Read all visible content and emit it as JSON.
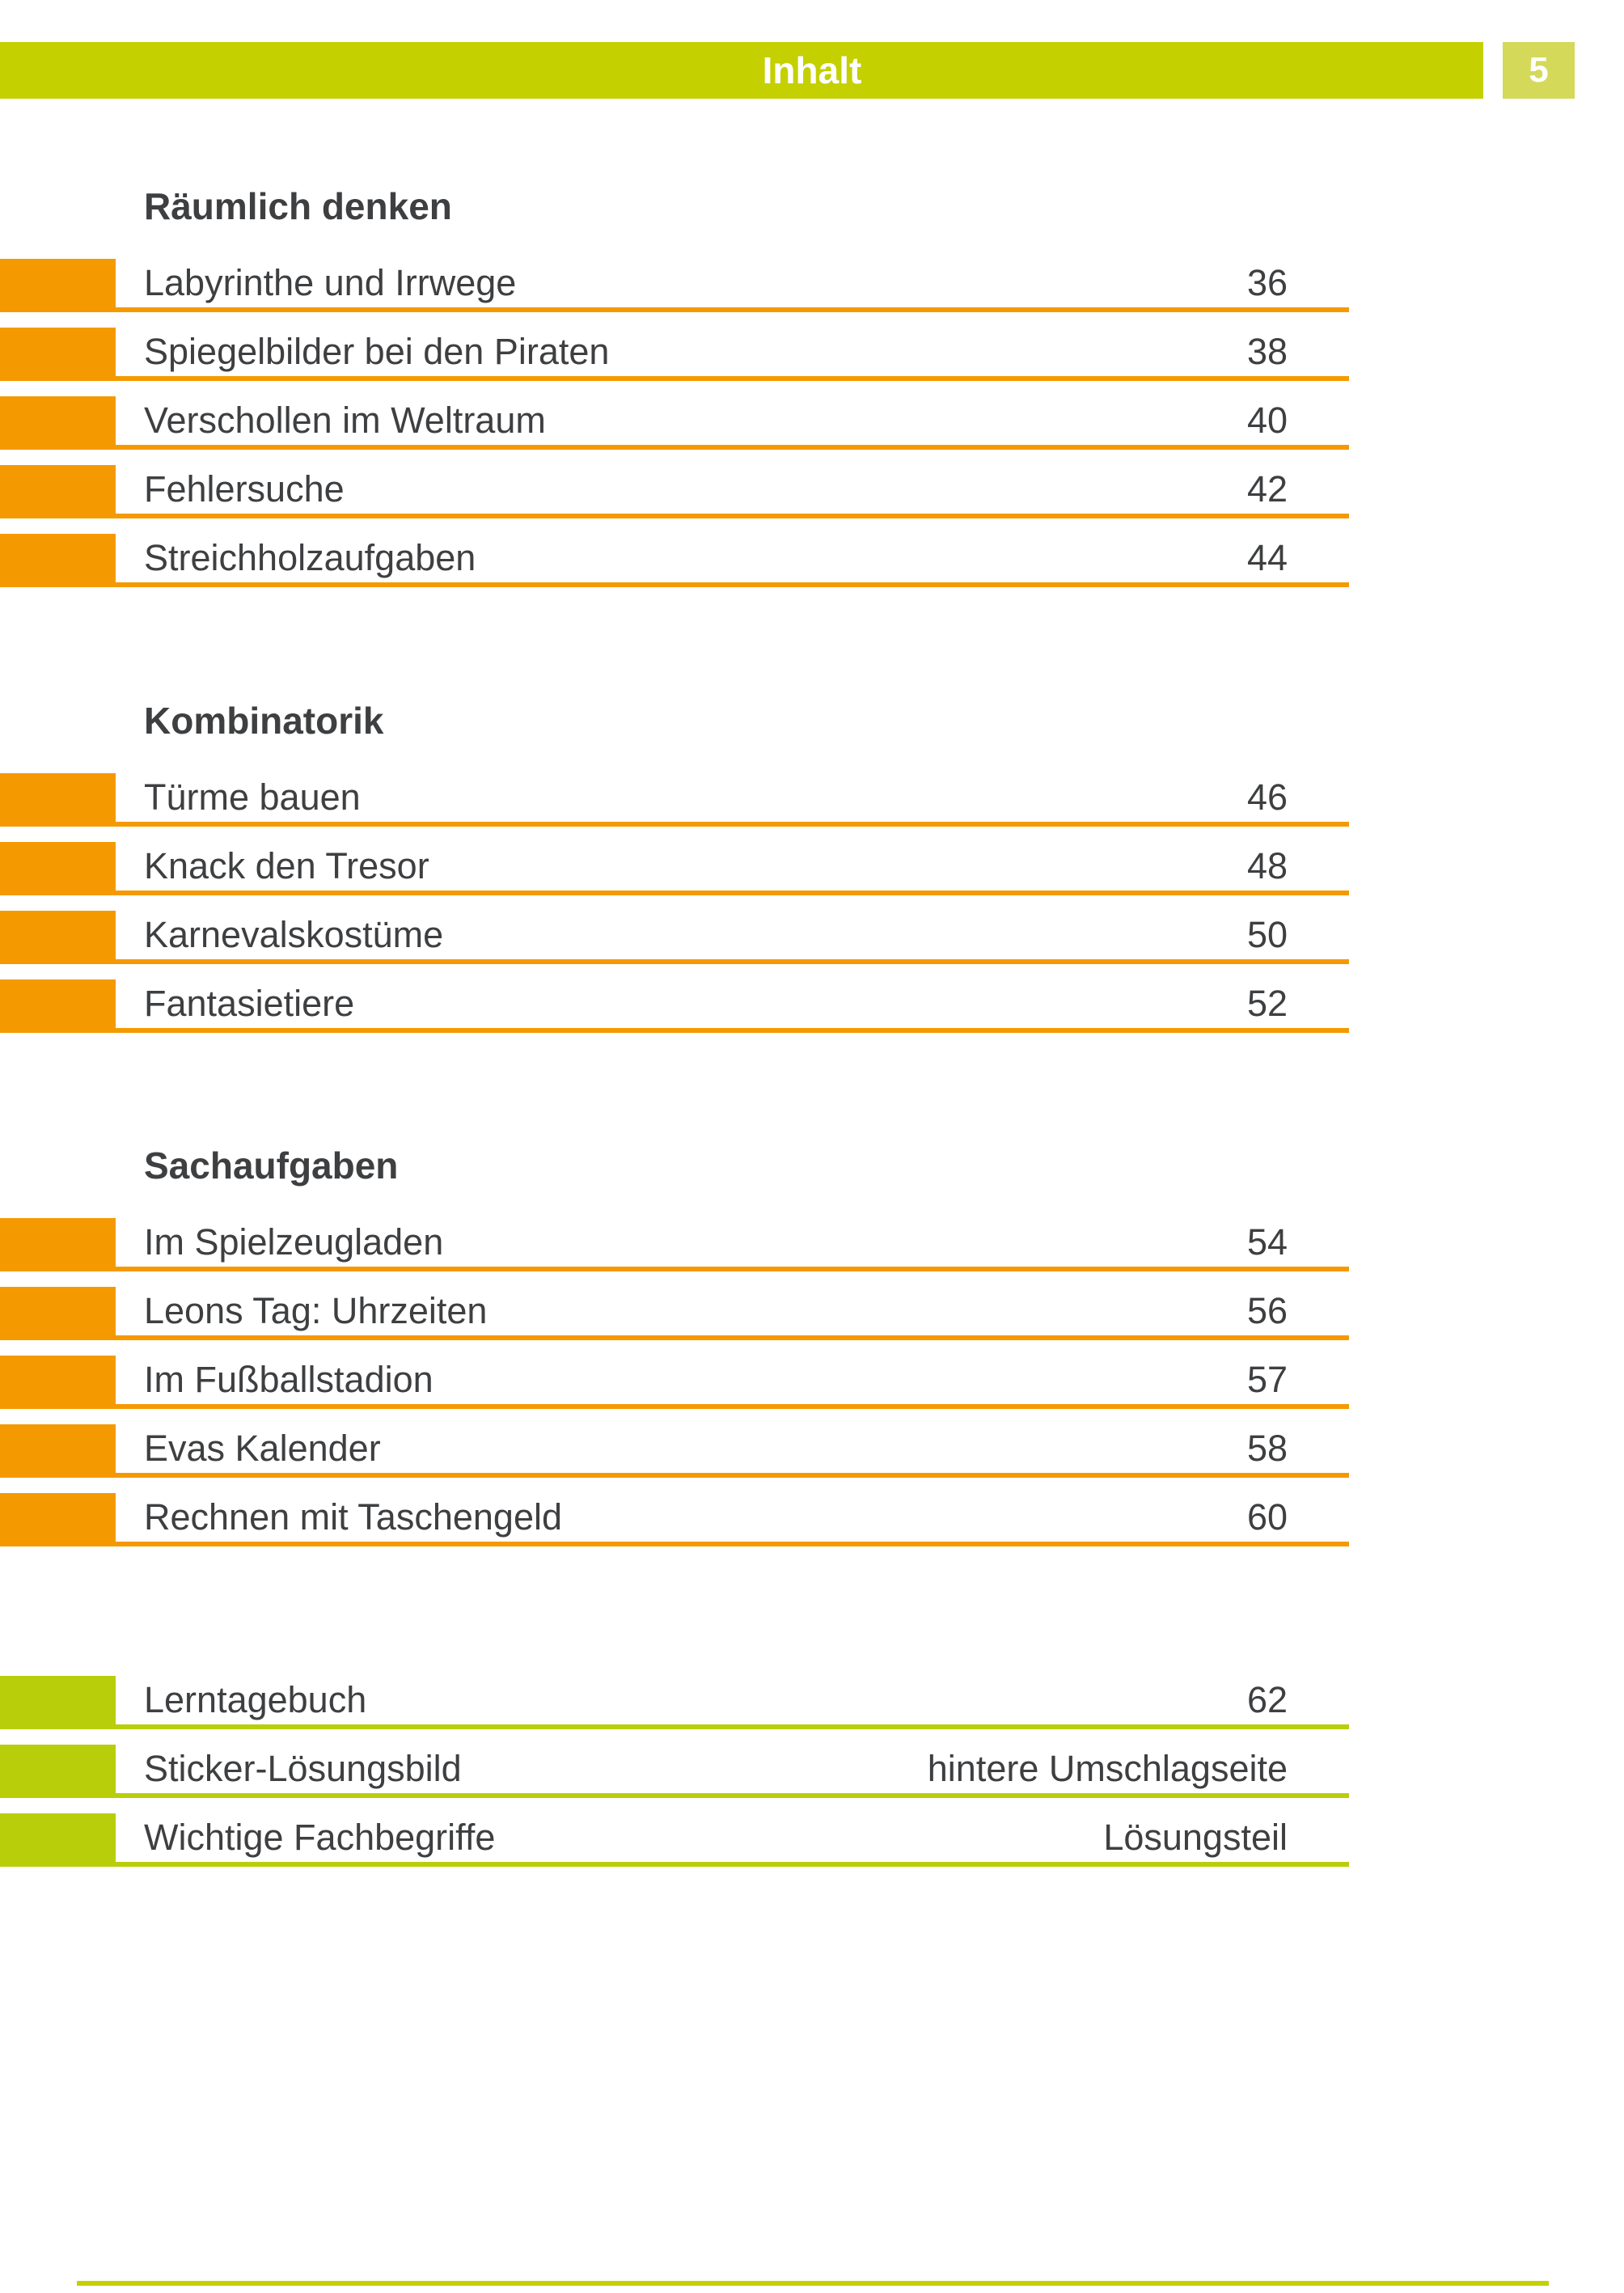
{
  "header": {
    "title": "Inhalt",
    "page_number": "5"
  },
  "colors": {
    "orange": "#F49A00",
    "green_bar": "#C5D000",
    "green_badge": "#D4D95A",
    "green_item": "#B9CE0A",
    "ink": "#3E3F41"
  },
  "sections": [
    {
      "heading": "Räumlich denken",
      "accent": "orange",
      "entries": [
        {
          "title": "Labyrinthe und Irrwege",
          "page": "36"
        },
        {
          "title": "Spiegelbilder bei den Piraten",
          "page": "38"
        },
        {
          "title": "Verschollen im Weltraum",
          "page": "40"
        },
        {
          "title": "Fehlersuche",
          "page": "42"
        },
        {
          "title": "Streichholzaufgaben",
          "page": "44"
        }
      ]
    },
    {
      "heading": "Kombinatorik",
      "accent": "orange",
      "entries": [
        {
          "title": "Türme bauen",
          "page": "46"
        },
        {
          "title": "Knack den Tresor",
          "page": "48"
        },
        {
          "title": "Karnevalskostüme",
          "page": "50"
        },
        {
          "title": "Fantasietiere",
          "page": "52"
        }
      ]
    },
    {
      "heading": "Sachaufgaben",
      "accent": "orange",
      "entries": [
        {
          "title": "Im Spielzeugladen",
          "page": "54"
        },
        {
          "title": "Leons Tag: Uhrzeiten",
          "page": "56"
        },
        {
          "title": "Im Fußballstadion",
          "page": "57"
        },
        {
          "title": "Evas Kalender",
          "page": "58"
        },
        {
          "title": "Rechnen mit Taschengeld",
          "page": "60"
        }
      ]
    },
    {
      "heading": "",
      "accent": "green",
      "entries": [
        {
          "title": "Lerntagebuch",
          "page": "62"
        },
        {
          "title": "Sticker-Lösungsbild",
          "page": "hintere Umschlagseite"
        },
        {
          "title": "Wichtige Fachbegriffe",
          "page": "Lösungsteil"
        }
      ]
    }
  ]
}
